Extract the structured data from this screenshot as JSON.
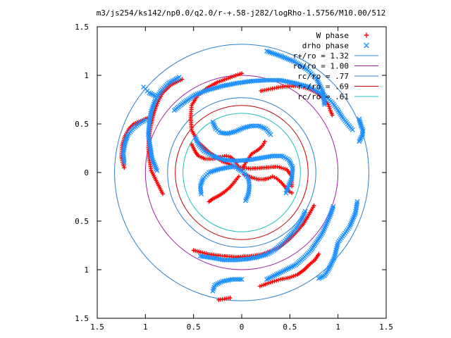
{
  "chart_data": {
    "type": "scatter",
    "title": "m3/js254/ks142/np0.0/q2.0/r-+.58-j282/logRho-1.5756/M10.00/512",
    "xlim": [
      -1.5,
      1.5
    ],
    "ylim": [
      -1.5,
      1.5
    ],
    "x_tick_labels": [
      "1.5",
      "1",
      "0.5",
      "0",
      "0.5",
      "1",
      "1.5"
    ],
    "y_tick_labels": [
      "1.5",
      "1",
      "0.5",
      "0",
      "0.5",
      "1",
      "1.5"
    ],
    "x_ticks": [
      -1.5,
      -1,
      -0.5,
      0,
      0.5,
      1,
      1.5
    ],
    "y_ticks": [
      1.5,
      1,
      0.5,
      0,
      -0.5,
      -1,
      -1.5
    ],
    "grid": false,
    "legend_position": "top-right",
    "series": [
      {
        "name": "W phase",
        "marker": "plus",
        "color": "#ff0000",
        "arms": [
          {
            "x": [
              0.0,
              -0.06,
              -0.14,
              -0.25,
              -0.36,
              -0.46,
              -0.52,
              -0.53,
              -0.52,
              -0.46,
              -0.34,
              -0.21,
              -0.07,
              0.09,
              0.24,
              0.37,
              0.47,
              0.52,
              0.52
            ],
            "y": [
              1.02,
              1.0,
              0.97,
              0.93,
              0.87,
              0.79,
              0.69,
              0.57,
              0.44,
              0.32,
              0.21,
              0.12,
              0.06,
              0.04,
              0.05,
              0.06,
              0.03,
              -0.04,
              -0.14
            ]
          },
          {
            "x": [
              0.03,
              0.1,
              0.17,
              0.23,
              0.28,
              0.32,
              0.36,
              0.41,
              0.46,
              0.5,
              0.52
            ],
            "y": [
              -0.02,
              -0.05,
              -0.07,
              -0.07,
              -0.06,
              -0.04,
              -0.06,
              -0.1,
              -0.16,
              -0.2,
              -0.21
            ]
          },
          {
            "x": [
              -0.02,
              -0.05,
              -0.08,
              -0.12,
              -0.16,
              -0.22,
              -0.3,
              -0.38,
              -0.45,
              -0.48,
              -0.52
            ],
            "y": [
              0.03,
              0.08,
              0.13,
              0.16,
              0.17,
              0.16,
              0.14,
              0.14,
              0.17,
              0.21,
              0.29
            ]
          },
          {
            "x": [
              0.01,
              0.03,
              0.05,
              0.07,
              0.1,
              0.15,
              0.18,
              0.22,
              0.24
            ],
            "y": [
              0.03,
              0.08,
              0.12,
              0.14,
              0.19,
              0.22,
              0.24,
              0.28,
              0.32
            ]
          },
          {
            "x": [
              -0.03,
              -0.07,
              -0.12,
              -0.18,
              -0.24,
              -0.3,
              -0.34
            ],
            "y": [
              -0.04,
              -0.09,
              -0.15,
              -0.2,
              -0.24,
              -0.27,
              -0.3
            ]
          },
          {
            "x": [
              -0.62,
              -0.74,
              -0.82,
              -0.87,
              -0.91,
              -0.94,
              -0.96,
              -0.97,
              -0.96,
              -0.94,
              -0.88,
              -0.82
            ],
            "y": [
              0.96,
              0.9,
              0.82,
              0.73,
              0.62,
              0.5,
              0.38,
              0.26,
              0.14,
              0.02,
              -0.1,
              -0.22
            ]
          },
          {
            "x": [
              -0.98,
              -1.05,
              -1.12,
              -1.17,
              -1.21,
              -1.24,
              -1.25,
              -1.22
            ],
            "y": [
              0.56,
              0.53,
              0.5,
              0.45,
              0.38,
              0.28,
              0.16,
              0.05
            ]
          },
          {
            "x": [
              0.2,
              0.3,
              0.4,
              0.5,
              0.6,
              0.7,
              0.78,
              0.85,
              0.9,
              0.92,
              0.94
            ],
            "y": [
              0.84,
              0.86,
              0.88,
              0.89,
              0.89,
              0.86,
              0.82,
              0.76,
              0.7,
              0.64,
              0.59
            ]
          },
          {
            "x": [
              -0.5,
              -0.35,
              -0.2,
              -0.05,
              0.1,
              0.22,
              0.32,
              0.4,
              0.48,
              0.56,
              0.64,
              0.7,
              0.75
            ],
            "y": [
              -0.8,
              -0.84,
              -0.86,
              -0.87,
              -0.86,
              -0.84,
              -0.8,
              -0.76,
              -0.7,
              -0.62,
              -0.53,
              -0.43,
              -0.34
            ]
          },
          {
            "x": [
              0.19,
              0.3,
              0.4,
              0.5,
              0.58,
              0.65,
              0.7,
              0.76,
              0.8
            ],
            "y": [
              -1.17,
              -1.13,
              -1.1,
              -1.08,
              -1.05,
              -1.0,
              -0.95,
              -0.9,
              -0.84
            ]
          },
          {
            "x": [
              -0.12,
              -0.18,
              -0.24
            ],
            "y": [
              -1.29,
              -1.3,
              -1.31
            ]
          }
        ]
      },
      {
        "name": "drho phase",
        "marker": "cross",
        "color": "#1e90ff",
        "arms": [
          {
            "x": [
              -0.48,
              -0.45,
              -0.39,
              -0.3,
              -0.18,
              -0.05,
              0.08,
              0.2,
              0.32,
              0.42,
              0.49,
              0.53,
              0.52,
              0.48,
              0.46
            ],
            "y": [
              0.36,
              0.29,
              0.22,
              0.17,
              0.13,
              0.12,
              0.13,
              0.15,
              0.17,
              0.17,
              0.13,
              0.05,
              -0.06,
              -0.15,
              -0.21
            ]
          },
          {
            "x": [
              -0.3,
              -0.27,
              -0.22,
              -0.15,
              -0.07,
              0.02,
              0.1,
              0.18,
              0.25,
              0.3
            ],
            "y": [
              0.52,
              0.45,
              0.41,
              0.4,
              0.42,
              0.46,
              0.48,
              0.48,
              0.45,
              0.39
            ]
          },
          {
            "x": [
              -0.42,
              -0.43,
              -0.4,
              -0.34,
              -0.25,
              -0.16,
              -0.08
            ],
            "y": [
              -0.22,
              -0.14,
              -0.06,
              0.0,
              0.03,
              0.05,
              0.06
            ]
          },
          {
            "x": [
              0.04,
              0.07,
              0.08,
              0.07,
              0.02,
              -0.04,
              -0.09
            ],
            "y": [
              -0.29,
              -0.22,
              -0.14,
              -0.06,
              0.0,
              0.04,
              0.08
            ]
          },
          {
            "x": [
              -0.43,
              -0.3,
              -0.18,
              -0.06,
              0.06,
              0.17,
              0.27,
              0.35,
              0.42,
              0.49,
              0.56,
              0.62,
              0.66
            ],
            "y": [
              -0.86,
              -0.88,
              -0.9,
              -0.9,
              -0.89,
              -0.87,
              -0.84,
              -0.79,
              -0.73,
              -0.66,
              -0.58,
              -0.49,
              -0.4
            ]
          },
          {
            "x": [
              -0.65,
              -0.76,
              -0.84,
              -0.9,
              -0.94,
              -0.96,
              -0.97,
              -0.95,
              -0.93,
              -0.88
            ],
            "y": [
              0.98,
              0.92,
              0.84,
              0.74,
              0.63,
              0.51,
              0.39,
              0.27,
              0.14,
              0.02
            ]
          },
          {
            "x": [
              -1.0,
              -1.07,
              -1.13,
              -1.18,
              -1.21,
              -1.23,
              -1.22
            ],
            "y": [
              0.54,
              0.5,
              0.45,
              0.39,
              0.31,
              0.2,
              0.1
            ]
          },
          {
            "x": [
              -0.7,
              -0.6,
              -0.48,
              -0.35,
              -0.2,
              -0.05,
              0.1,
              0.25,
              0.4,
              0.55,
              0.7,
              0.85,
              0.94,
              1.0,
              1.05,
              1.1,
              1.15
            ],
            "y": [
              0.64,
              0.72,
              0.8,
              0.85,
              0.89,
              0.92,
              0.94,
              0.95,
              0.95,
              0.92,
              0.88,
              0.8,
              0.72,
              0.64,
              0.56,
              0.5,
              0.44
            ]
          },
          {
            "x": [
              0.26,
              0.4,
              0.55,
              0.68,
              0.78,
              0.84,
              0.86
            ],
            "y": [
              1.25,
              1.2,
              1.14,
              1.06,
              0.96,
              0.84,
              0.7
            ]
          },
          {
            "x": [
              0.26,
              0.36,
              0.46,
              0.56,
              0.64,
              0.72,
              0.78,
              0.84,
              0.88,
              0.92,
              0.95
            ],
            "y": [
              -1.1,
              -1.05,
              -1.0,
              -0.95,
              -0.88,
              -0.8,
              -0.71,
              -0.62,
              -0.53,
              -0.44,
              -0.35
            ]
          },
          {
            "x": [
              0.8,
              0.86,
              0.9,
              0.93,
              0.96,
              0.98,
              1.0,
              1.06,
              1.12,
              1.18,
              1.2
            ],
            "y": [
              -1.09,
              -1.06,
              -1.0,
              -0.94,
              -0.88,
              -0.8,
              -0.72,
              -0.64,
              -0.56,
              -0.42,
              -0.3
            ]
          },
          {
            "x": [
              0.0,
              -0.1,
              -0.2,
              -0.28,
              -0.3
            ],
            "y": [
              -1.1,
              -1.1,
              -1.12,
              -1.16,
              -1.22
            ]
          },
          {
            "x": [
              1.22,
              1.24,
              1.26,
              1.25,
              1.22
            ],
            "y": [
              0.55,
              0.48,
              0.43,
              0.38,
              0.32
            ]
          },
          {
            "x": [
              -0.9,
              -0.96,
              -0.98,
              -1.0,
              -1.02
            ],
            "y": [
              0.79,
              0.82,
              0.84,
              0.86,
              0.88
            ]
          }
        ]
      }
    ],
    "circles": [
      {
        "name": "r+/ro = 1.32",
        "radius": 1.32,
        "color": "#2b7fc9"
      },
      {
        "name": "ro/ro = 1.00",
        "radius": 1.0,
        "color": "#a020a0"
      },
      {
        "name": "rc/ro = .77",
        "radius": 0.77,
        "color": "#2b7fc9"
      },
      {
        "name": "r-/ro = .69",
        "radius": 0.69,
        "color": "#c00000"
      },
      {
        "name": "rc/ro = .61",
        "radius": 0.61,
        "color": "#20c0c0"
      }
    ],
    "legend": [
      {
        "label": "W phase",
        "symbol": "plus",
        "color": "#ff0000"
      },
      {
        "label": "drho phase",
        "symbol": "cross",
        "color": "#1e90ff"
      },
      {
        "label": "r+/ro = 1.32",
        "symbol": "line",
        "color": "#2b7fc9"
      },
      {
        "label": "ro/ro = 1.00",
        "symbol": "line",
        "color": "#a020a0"
      },
      {
        "label": "rc/ro = .77",
        "symbol": "line",
        "color": "#2b7fc9"
      },
      {
        "label": "r-/ro = .69",
        "symbol": "line",
        "color": "#c00000"
      },
      {
        "label": "rc/ro = .61",
        "symbol": "line",
        "color": "#20c0c0"
      }
    ]
  }
}
